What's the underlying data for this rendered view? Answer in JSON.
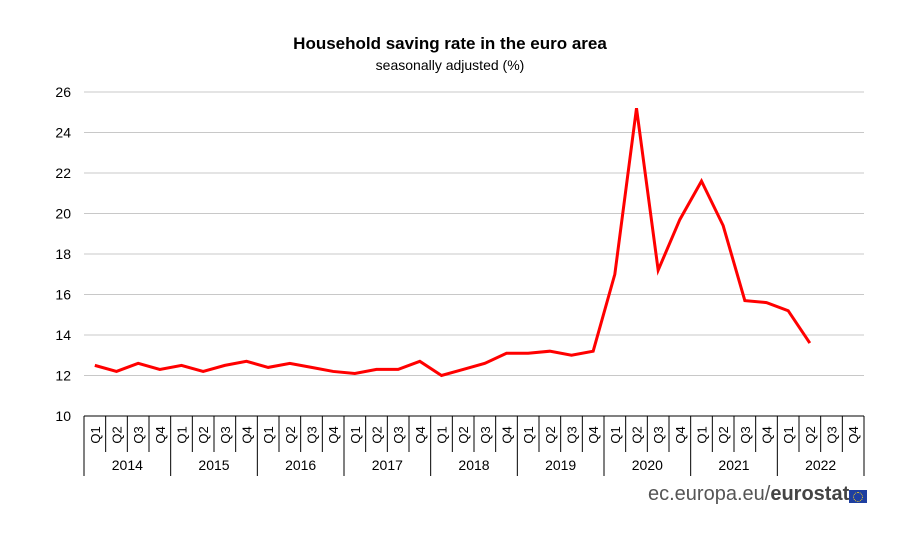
{
  "chart_data": {
    "type": "line",
    "title": "Household saving rate in the euro area",
    "subtitle": "seasonally adjusted (%)",
    "xlabel": "",
    "ylabel": "",
    "ylim": [
      10,
      26
    ],
    "yticks": [
      "10",
      "12",
      "14",
      "16",
      "18",
      "20",
      "22",
      "24",
      "26"
    ],
    "grid": true,
    "line_color": "#ff0000",
    "quarters": [
      "Q1",
      "Q2",
      "Q3",
      "Q4"
    ],
    "years": [
      "2014",
      "2015",
      "2016",
      "2017",
      "2018",
      "2019",
      "2020",
      "2021",
      "2022"
    ],
    "series": [
      {
        "name": "Household saving rate",
        "values": [
          12.5,
          12.2,
          12.6,
          12.3,
          12.5,
          12.2,
          12.5,
          12.7,
          12.4,
          12.6,
          12.4,
          12.2,
          12.1,
          12.3,
          12.3,
          12.7,
          12.0,
          12.3,
          12.6,
          13.1,
          13.1,
          13.2,
          13.0,
          13.2,
          17.0,
          25.2,
          17.2,
          19.7,
          21.6,
          19.4,
          15.7,
          15.6,
          15.2,
          13.6
        ]
      }
    ]
  },
  "source": {
    "domain": "ec.europa.eu/",
    "brand": "eurostat",
    "flag_color": "#1e3fa0"
  }
}
